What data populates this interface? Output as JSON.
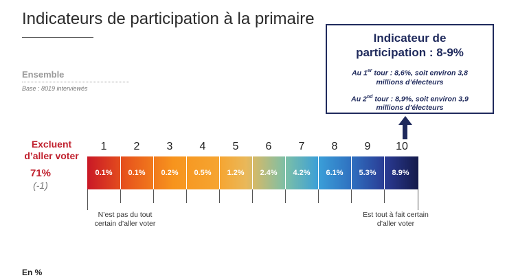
{
  "title": "Indicateurs de participation à la primaire",
  "segment": {
    "label": "Ensemble",
    "base": "Base : 8019 interviewés"
  },
  "callout": {
    "title_line1": "Indicateur de",
    "title_line2": "participation : 8-9%",
    "first_round": {
      "prefix": "Au 1",
      "sup": "er",
      "text": " tour : 8,6%, soit environ 3,8",
      "line2": "millions d’électeurs"
    },
    "second_round": {
      "prefix": "Au 2",
      "sup": "nd",
      "text": " tour : 8,9%, soit environ 3,9",
      "line2": "millions d’électeurs"
    },
    "arrow_icon": "arrow-up-icon"
  },
  "exclude": {
    "line1": "Excluent",
    "line2": "d’aller voter",
    "percent": "71%",
    "delta": "(-1)",
    "color": "#c0202d"
  },
  "scale": {
    "numbers": [
      "1",
      "2",
      "3",
      "4",
      "5",
      "6",
      "7",
      "8",
      "9",
      "10"
    ],
    "values": [
      "0.1%",
      "0.1%",
      "0.2%",
      "0.5%",
      "1.2%",
      "2.4%",
      "4.2%",
      "6.1%",
      "5.3%",
      "8.9%"
    ],
    "gradient_start": "#c91826",
    "gradient_end": "#141a4a"
  },
  "anchors": {
    "low_line1": "N’est pas du tout",
    "low_line2": "certain d’aller voter",
    "high_line1": "Est tout à fait certain",
    "high_line2": "d’aller voter"
  },
  "unit": "En %"
}
